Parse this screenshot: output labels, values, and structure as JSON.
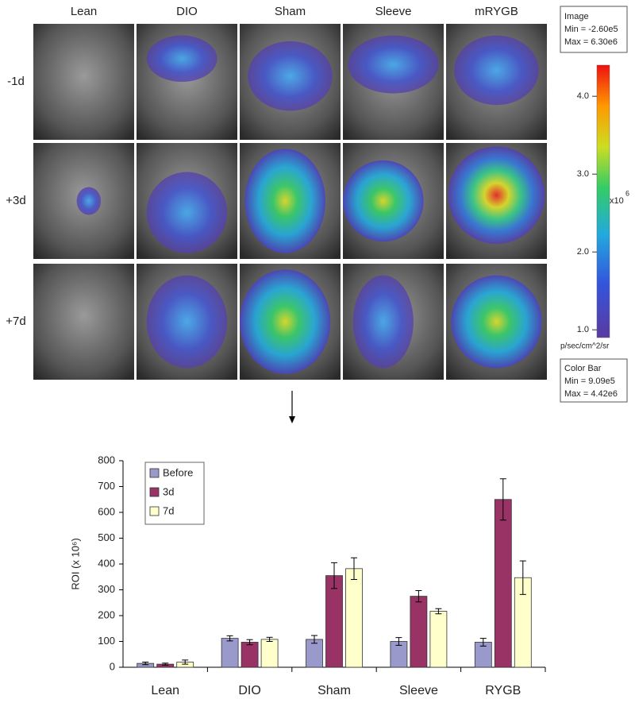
{
  "image_panel": {
    "columns": [
      "Lean",
      "DIO",
      "Sham",
      "Sleeve",
      "mRYGB"
    ],
    "rows": [
      "-1d",
      "+3d",
      "+7d"
    ],
    "image_box": {
      "title": "Image",
      "min": "Min = -2.60e5",
      "max": "Max = 6.30e6"
    },
    "colorbar": {
      "lim": [
        0.9,
        4.4
      ],
      "ticks": [
        {
          "value": 1,
          "label": "1.0"
        },
        {
          "value": 2,
          "label": "2.0"
        },
        {
          "value": 3,
          "label": "3.0"
        },
        {
          "value": 4,
          "label": "4.0"
        }
      ],
      "scale": "x10",
      "scale_exponent": "6",
      "unit": "p/sec/cm^2/sr"
    },
    "colorbar_box": {
      "title": "Color Bar",
      "min": "Min = 9.09e5",
      "max": "Max = 4.42e6"
    }
  },
  "chart_data": {
    "type": "bar",
    "ylabel": "ROI (x 10⁶)",
    "categories": [
      "Lean",
      "DIO",
      "Sham",
      "Sleeve",
      "RYGB"
    ],
    "series": [
      {
        "name": "Before",
        "color": "#9999cc",
        "values": [
          15,
          112,
          108,
          100,
          97
        ],
        "errors": [
          5,
          10,
          15,
          15,
          15
        ]
      },
      {
        "name": "3d",
        "color": "#993366",
        "values": [
          12,
          97,
          355,
          275,
          650
        ],
        "errors": [
          4,
          10,
          50,
          22,
          80
        ]
      },
      {
        "name": "7d",
        "color": "#ffffcc",
        "values": [
          20,
          108,
          382,
          217,
          347
        ],
        "errors": [
          8,
          8,
          42,
          10,
          65
        ]
      }
    ],
    "ylim": [
      0,
      800
    ],
    "yticks": [
      0,
      100,
      200,
      300,
      400,
      500,
      600,
      700,
      800
    ],
    "legend": "top-left"
  }
}
